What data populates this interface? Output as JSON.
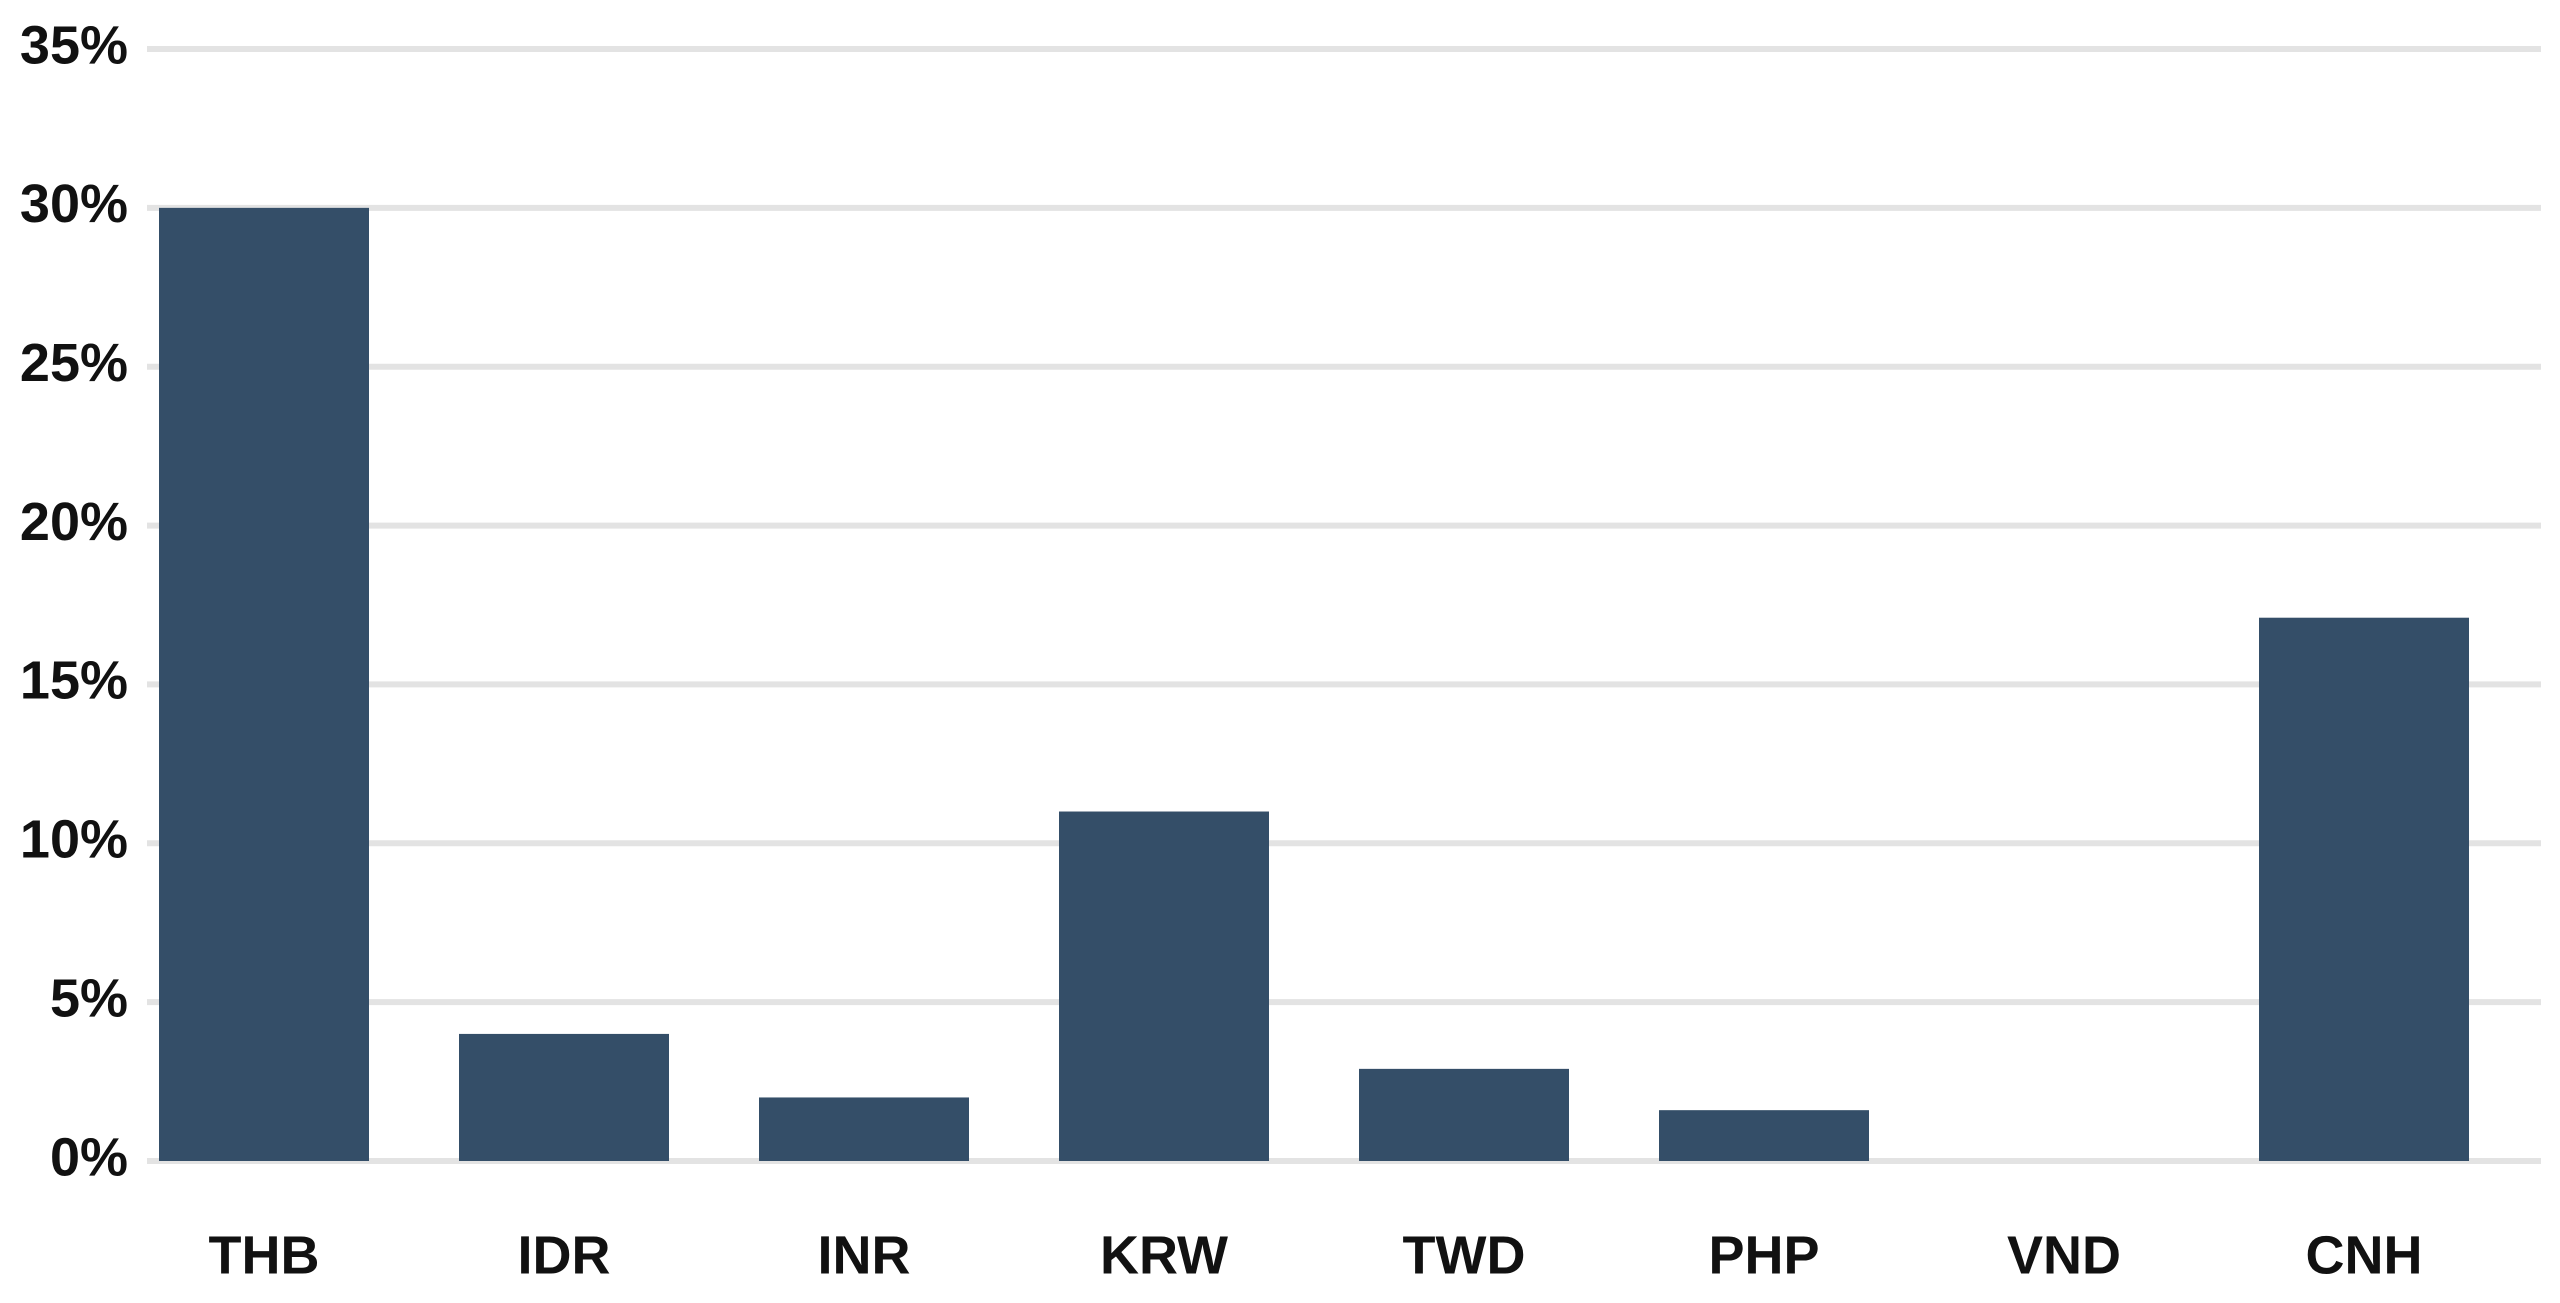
{
  "chart_data": {
    "type": "bar",
    "categories": [
      "THB",
      "IDR",
      "INR",
      "KRW",
      "TWD",
      "PHP",
      "VND",
      "CNH"
    ],
    "values": [
      30,
      4,
      2,
      11,
      2.9,
      1.6,
      0,
      17.1
    ],
    "color": "#344e68",
    "ylim": [
      0,
      35
    ],
    "yticks": [
      {
        "value": 0,
        "label": "0%"
      },
      {
        "value": 5,
        "label": "5%"
      },
      {
        "value": 10,
        "label": "10%"
      },
      {
        "value": 15,
        "label": "15%"
      },
      {
        "value": 20,
        "label": "20%"
      },
      {
        "value": 25,
        "label": "25%"
      },
      {
        "value": 30,
        "label": "30%"
      },
      {
        "value": 35,
        "label": "35%"
      }
    ],
    "grid": true
  }
}
